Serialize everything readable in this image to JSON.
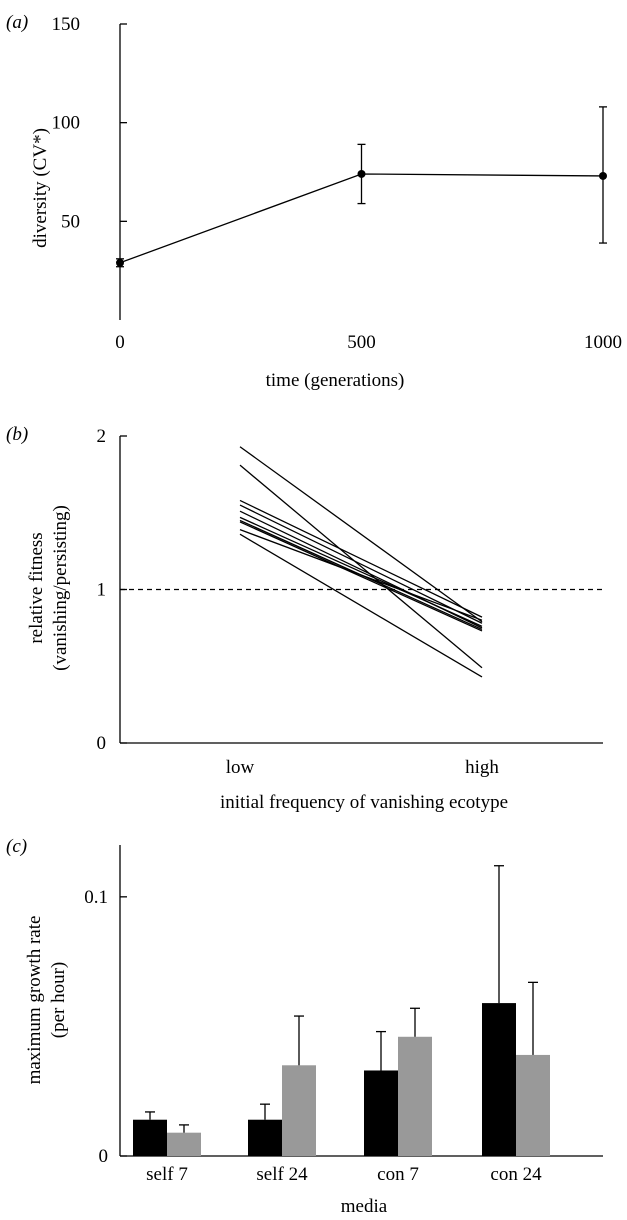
{
  "chart_data": [
    {
      "panel": "(a)",
      "type": "line",
      "ylabel": "diversity (CV*)",
      "xlabel": "time (generations)",
      "xticks": [
        "0",
        "500",
        "1000"
      ],
      "yticks": [
        "50",
        "100",
        "150"
      ],
      "xlim": [
        0,
        1000
      ],
      "ylim": [
        0,
        150
      ],
      "x": [
        0,
        500,
        1000
      ],
      "y": [
        29,
        74,
        73
      ],
      "yerr_low": [
        27,
        59,
        39
      ],
      "yerr_high": [
        31,
        89,
        108
      ]
    },
    {
      "panel": "(b)",
      "type": "line",
      "ylabel": [
        "relative fitness",
        "(vanishing/persisting)"
      ],
      "xlabel": "initial frequency of vanishing ecotype",
      "categories": [
        "low",
        "high"
      ],
      "yticks": [
        "0",
        "1",
        "2"
      ],
      "ylim": [
        0,
        2
      ],
      "reference_line": 1,
      "series": [
        {
          "values": [
            1.93,
            0.79
          ]
        },
        {
          "values": [
            1.81,
            0.49
          ]
        },
        {
          "values": [
            1.58,
            0.82
          ]
        },
        {
          "values": [
            1.55,
            0.78
          ]
        },
        {
          "values": [
            1.51,
            0.75
          ]
        },
        {
          "values": [
            1.47,
            0.76
          ]
        },
        {
          "values": [
            1.45,
            0.74
          ]
        },
        {
          "values": [
            1.44,
            0.73
          ]
        },
        {
          "values": [
            1.39,
            0.8
          ]
        },
        {
          "values": [
            1.36,
            0.43
          ]
        }
      ]
    },
    {
      "panel": "(c)",
      "type": "bar",
      "ylabel": [
        "maximum growth rate",
        "(per hour)"
      ],
      "xlabel": "media",
      "categories": [
        "self 7",
        "self 24",
        "con 7",
        "con 24"
      ],
      "yticks": [
        "0",
        "0.1"
      ],
      "ylim": [
        0,
        0.12
      ],
      "series": [
        {
          "color": "#000000",
          "values": [
            0.014,
            0.014,
            0.033,
            0.059
          ],
          "err": [
            0.003,
            0.006,
            0.015,
            0.053
          ]
        },
        {
          "color": "#999999",
          "values": [
            0.009,
            0.035,
            0.046,
            0.039
          ],
          "err": [
            0.003,
            0.019,
            0.011,
            0.028
          ]
        }
      ]
    }
  ]
}
